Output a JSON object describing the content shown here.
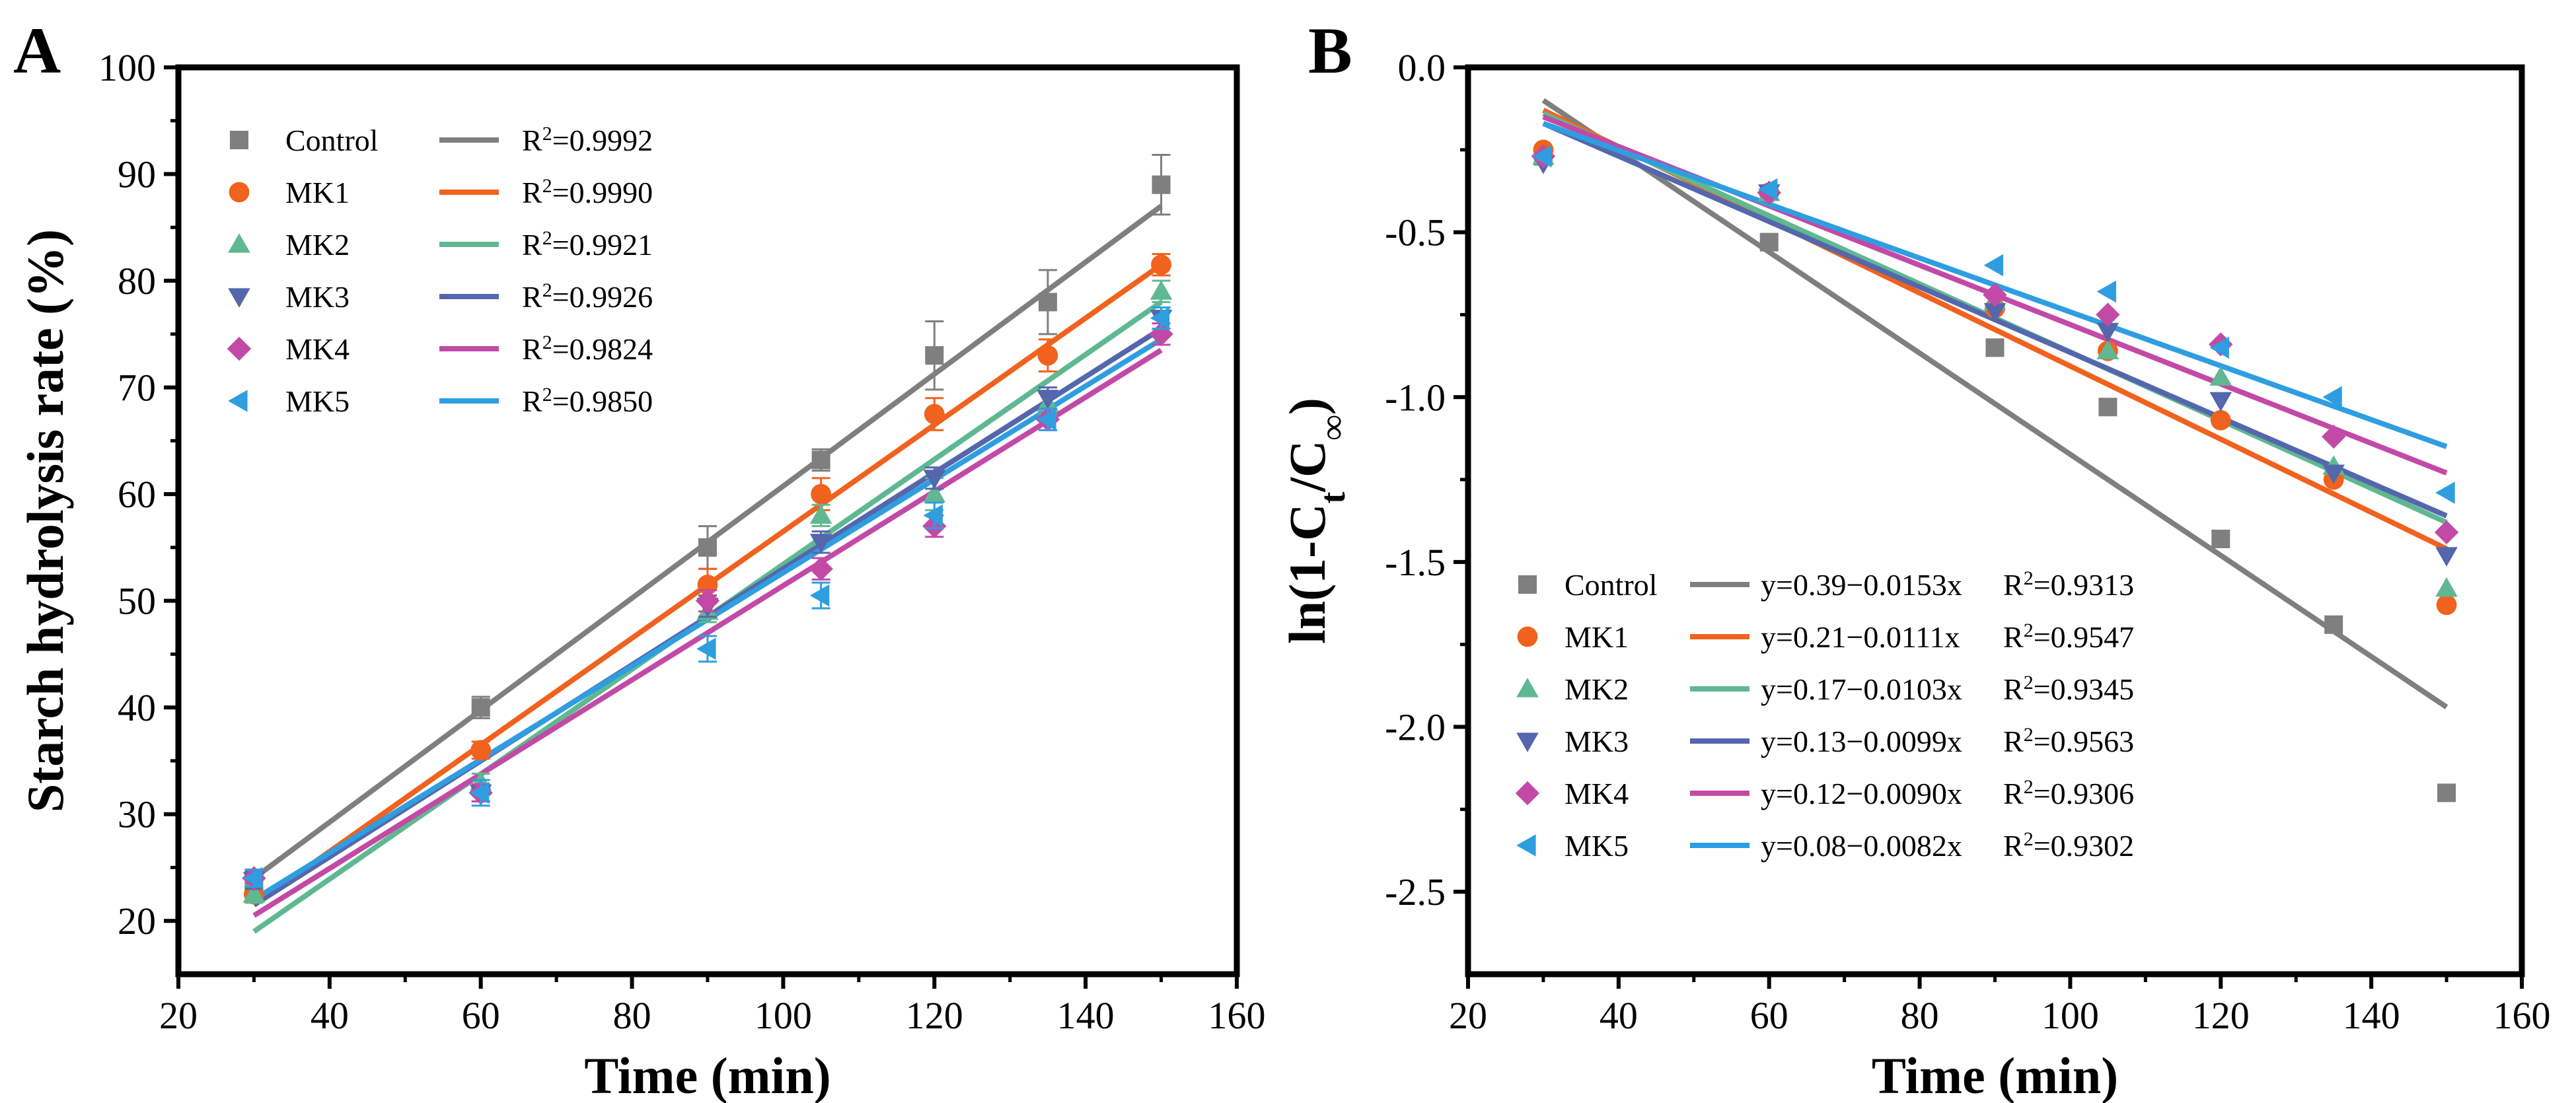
{
  "colors": {
    "Control": "#7f7f7f",
    "MK1": "#f0621d",
    "MK2": "#5fb891",
    "MK3": "#5467ad",
    "MK4": "#c24aa6",
    "MK5": "#2e9ee0"
  },
  "chart_data": [
    {
      "type": "scatter",
      "panel_label": "A",
      "xlabel": "Time (min)",
      "ylabel": "Starch hydrolysis rate (%)",
      "xlim": [
        20,
        160
      ],
      "ylim": [
        15,
        100
      ],
      "xticks": [
        "20",
        "40",
        "60",
        "80",
        "100",
        "120",
        "140",
        "160"
      ],
      "yticks": [
        "20",
        "30",
        "40",
        "50",
        "60",
        "70",
        "80",
        "90",
        "100"
      ],
      "x": [
        30,
        60,
        90,
        105,
        120,
        135,
        150
      ],
      "legend_position": "top-left",
      "series": [
        {
          "name": "Control",
          "marker": "square",
          "values": [
            23.5,
            40.0,
            55.0,
            63.2,
            73.0,
            78.0,
            89.0
          ],
          "errors": [
            1.0,
            1.0,
            2.0,
            1.0,
            3.2,
            3.0,
            2.8
          ],
          "fit": {
            "x": [
              30,
              150
            ],
            "y": [
              24.0,
              87.0
            ]
          },
          "r2": "0.9992"
        },
        {
          "name": "MK1",
          "marker": "circle",
          "values": [
            22.5,
            36.0,
            51.5,
            60.0,
            67.5,
            73.0,
            81.5
          ],
          "errors": [
            0.8,
            0.8,
            1.5,
            1.5,
            1.5,
            1.5,
            1.0
          ],
          "fit": {
            "x": [
              30,
              150
            ],
            "y": [
              21.5,
              81.5
            ]
          },
          "r2": "0.9990"
        },
        {
          "name": "MK2",
          "marker": "triangle-up",
          "values": [
            22.5,
            33.0,
            49.0,
            58.0,
            60.0,
            68.5,
            79.0
          ],
          "errors": [
            0.8,
            0.8,
            1.0,
            1.0,
            1.5,
            1.0,
            1.0
          ],
          "fit": {
            "x": [
              30,
              150
            ],
            "y": [
              19.0,
              78.0
            ]
          },
          "r2": "0.9921"
        },
        {
          "name": "MK3",
          "marker": "triangle-down",
          "values": [
            23.8,
            32.0,
            49.5,
            55.5,
            61.5,
            69.0,
            76.5
          ],
          "errors": [
            0.8,
            0.8,
            1.0,
            1.0,
            1.0,
            1.0,
            1.0
          ],
          "fit": {
            "x": [
              30,
              150
            ],
            "y": [
              21.5,
              75.5
            ]
          },
          "r2": "0.9926"
        },
        {
          "name": "MK4",
          "marker": "diamond",
          "values": [
            24.0,
            32.0,
            50.0,
            53.0,
            57.0,
            67.0,
            75.0
          ],
          "errors": [
            0.8,
            0.8,
            1.0,
            1.0,
            1.0,
            1.0,
            1.0
          ],
          "fit": {
            "x": [
              30,
              150
            ],
            "y": [
              20.5,
              73.5
            ]
          },
          "r2": "0.9824"
        },
        {
          "name": "MK5",
          "marker": "triangle-left",
          "values": [
            24.0,
            32.0,
            45.5,
            50.5,
            58.0,
            67.0,
            76.5
          ],
          "errors": [
            0.8,
            1.2,
            1.2,
            1.2,
            1.2,
            1.0,
            1.0
          ],
          "fit": {
            "x": [
              30,
              150
            ],
            "y": [
              22.0,
              74.5
            ]
          },
          "r2": "0.9850"
        }
      ]
    },
    {
      "type": "scatter",
      "panel_label": "B",
      "xlabel": "Time (min)",
      "ylabel_parts": {
        "pre": "ln(1-C",
        "sub1": "t",
        "mid": "/C",
        "sub2": "∞",
        "post": ")"
      },
      "xlim": [
        20,
        160
      ],
      "ylim": [
        -2.75,
        0.0
      ],
      "xticks": [
        "20",
        "40",
        "60",
        "80",
        "100",
        "120",
        "140",
        "160"
      ],
      "yticks": [
        "0.0",
        "-0.5",
        "-1.0",
        "-1.5",
        "-2.0",
        "-2.5"
      ],
      "x": [
        30,
        60,
        90,
        105,
        120,
        135,
        150
      ],
      "legend_position": "bottom-left",
      "series": [
        {
          "name": "Control",
          "marker": "square",
          "values": [
            -0.27,
            -0.53,
            -0.85,
            -1.03,
            -1.43,
            -1.69,
            -2.2
          ],
          "equation": "y=0.39−0.0153x",
          "r2": "0.9313",
          "fit": {
            "x": [
              30,
              150
            ],
            "y": [
              -0.1,
              -1.94
            ]
          }
        },
        {
          "name": "MK1",
          "marker": "circle",
          "values": [
            -0.25,
            -0.38,
            -0.73,
            -0.86,
            -1.07,
            -1.25,
            -1.63
          ],
          "equation": "y=0.21−0.0111x",
          "r2": "0.9547",
          "fit": {
            "x": [
              30,
              150
            ],
            "y": [
              -0.13,
              -1.46
            ]
          }
        },
        {
          "name": "MK2",
          "marker": "triangle-up",
          "values": [
            -0.27,
            -0.38,
            -0.71,
            -0.86,
            -0.94,
            -1.21,
            -1.58
          ],
          "equation": "y=0.17−0.0103x",
          "r2": "0.9345",
          "fit": {
            "x": [
              30,
              150
            ],
            "y": [
              -0.14,
              -1.38
            ]
          }
        },
        {
          "name": "MK3",
          "marker": "triangle-down",
          "values": [
            -0.29,
            -0.38,
            -0.74,
            -0.8,
            -1.01,
            -1.23,
            -1.48
          ],
          "equation": "y=0.13−0.0099x",
          "r2": "0.9563",
          "fit": {
            "x": [
              30,
              150
            ],
            "y": [
              -0.17,
              -1.36
            ]
          }
        },
        {
          "name": "MK4",
          "marker": "diamond",
          "values": [
            -0.27,
            -0.38,
            -0.69,
            -0.75,
            -0.84,
            -1.12,
            -1.41
          ],
          "equation": "y=0.12−0.0090x",
          "r2": "0.9306",
          "fit": {
            "x": [
              30,
              150
            ],
            "y": [
              -0.15,
              -1.23
            ]
          }
        },
        {
          "name": "MK5",
          "marker": "triangle-left",
          "values": [
            -0.27,
            -0.37,
            -0.6,
            -0.68,
            -0.85,
            -1.0,
            -1.29
          ],
          "equation": "y=0.08−0.0082x",
          "r2": "0.9302",
          "fit": {
            "x": [
              30,
              150
            ],
            "y": [
              -0.17,
              -1.15
            ]
          }
        }
      ]
    }
  ]
}
